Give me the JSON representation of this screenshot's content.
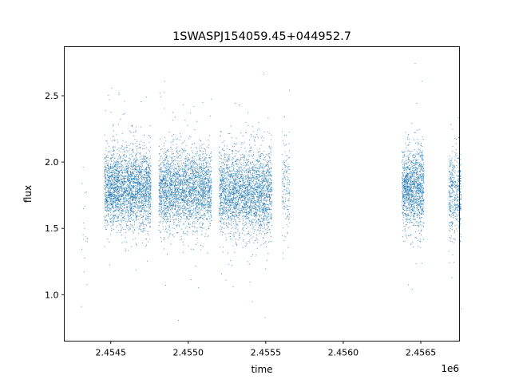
{
  "chart_data": {
    "type": "scatter",
    "title": "1SWASPJ154059.45+044952.7",
    "xlabel": "time",
    "ylabel": "flux",
    "x_offset_label": "1e6",
    "xlim": [
      2.4542,
      2.45675
    ],
    "ylim": [
      0.65,
      2.87
    ],
    "x_ticks": [
      2.4545,
      2.455,
      2.4555,
      2.456,
      2.4565
    ],
    "x_tick_labels": [
      "2.4545",
      "2.4550",
      "2.4555",
      "2.4560",
      "2.4565"
    ],
    "y_ticks": [
      1.0,
      1.5,
      2.0,
      2.5
    ],
    "y_tick_labels": [
      "1.0",
      "1.5",
      "2.0",
      "2.5"
    ],
    "grid": false,
    "marker_color": "#1f77b4",
    "observing_seasons": [
      {
        "x_center": 2.45433,
        "x_width": 2e-05,
        "n_points": 20,
        "flux_median": 1.6,
        "flux_spread": 0.25
      },
      {
        "x_center": 2.45461,
        "x_width": 0.00015,
        "n_points": 2600,
        "flux_median": 1.8,
        "flux_spread": 0.15
      },
      {
        "x_center": 2.45498,
        "x_width": 0.00017,
        "n_points": 2600,
        "flux_median": 1.8,
        "flux_spread": 0.15
      },
      {
        "x_center": 2.45537,
        "x_width": 0.00017,
        "n_points": 2600,
        "flux_median": 1.78,
        "flux_spread": 0.16
      },
      {
        "x_center": 2.45563,
        "x_width": 2.5e-05,
        "n_points": 150,
        "flux_median": 1.8,
        "flux_spread": 0.18
      },
      {
        "x_center": 2.45645,
        "x_width": 7e-05,
        "n_points": 1300,
        "flux_median": 1.8,
        "flux_spread": 0.15
      },
      {
        "x_center": 2.45672,
        "x_width": 4e-05,
        "n_points": 450,
        "flux_median": 1.75,
        "flux_spread": 0.17
      }
    ]
  }
}
